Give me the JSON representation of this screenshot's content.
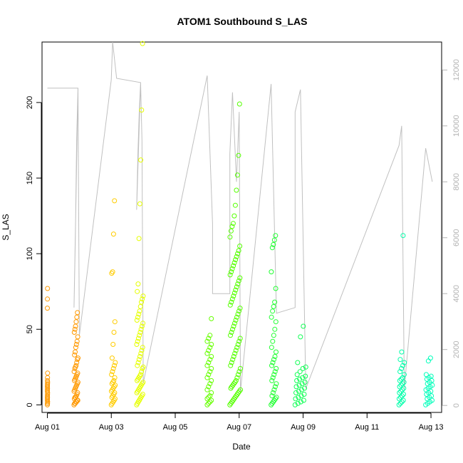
{
  "chart_data": {
    "type": "scatter",
    "title": "ATOM1 Southbound S_LAS",
    "xlabel": "Date",
    "ylabel": "S_LAS",
    "x_axis_type": "date",
    "xlim": [
      "2023-07-31T20:00",
      "2023-08-13T08:00"
    ],
    "ylim": [
      -5,
      240
    ],
    "y2lim": [
      -250,
      13000
    ],
    "x_ticks": [
      {
        "date": "2023-08-01T00:00",
        "label": "Aug 01"
      },
      {
        "date": "2023-08-03T00:00",
        "label": "Aug 03"
      },
      {
        "date": "2023-08-05T00:00",
        "label": "Aug 05"
      },
      {
        "date": "2023-08-07T00:00",
        "label": "Aug 07"
      },
      {
        "date": "2023-08-09T00:00",
        "label": "Aug 09"
      },
      {
        "date": "2023-08-11T00:00",
        "label": "Aug 11"
      },
      {
        "date": "2023-08-13T00:00",
        "label": "Aug 13"
      }
    ],
    "y_ticks": [
      0,
      50,
      100,
      150,
      200
    ],
    "y2_ticks": [
      0,
      2000,
      4000,
      6000,
      8000,
      10000,
      12000
    ],
    "grid": false,
    "marker": "open-circle",
    "clusters": [
      {
        "start": "2023-08-01T00:00",
        "end": "2023-08-01T00:10",
        "color": "#ff9900",
        "values": [
          0,
          1,
          1,
          2,
          3,
          4,
          5,
          5,
          6,
          7,
          8,
          9,
          10,
          11,
          12,
          13,
          14,
          15,
          16,
          18,
          21,
          64,
          70,
          77
        ]
      },
      {
        "start": "2023-08-01T20:00",
        "end": "2023-08-01T23:00",
        "color": "#ff9900",
        "values": [
          0,
          1,
          1,
          2,
          2,
          3,
          3,
          4,
          5,
          5,
          6,
          7,
          8,
          9,
          10,
          11,
          12,
          13,
          14,
          15,
          16,
          17,
          18,
          19,
          20,
          21,
          22,
          24,
          25,
          26,
          28,
          30,
          31,
          33,
          35,
          38,
          40,
          42,
          45,
          48,
          50,
          52,
          55,
          58,
          61
        ]
      },
      {
        "start": "2023-08-03T00:00",
        "end": "2023-08-03T03:00",
        "color": "#ffcc00",
        "values": [
          0,
          1,
          2,
          3,
          4,
          5,
          6,
          7,
          8,
          9,
          10,
          11,
          12,
          13,
          14,
          15,
          16,
          18,
          20,
          22,
          24,
          26,
          28,
          31,
          40,
          48,
          55,
          87,
          88,
          113,
          135
        ]
      },
      {
        "start": "2023-08-03T19:00",
        "end": "2023-08-04T00:00",
        "color": "#e6ff00",
        "values": [
          0,
          1,
          2,
          3,
          4,
          5,
          6,
          7,
          8,
          9,
          10,
          11,
          12,
          13,
          14,
          15,
          16,
          17,
          18,
          19,
          20,
          22,
          24,
          25,
          26,
          28,
          30,
          32,
          34,
          36,
          38,
          40,
          42,
          44,
          46,
          48,
          50,
          52,
          54,
          56,
          58,
          60,
          62,
          65,
          68,
          70,
          72,
          75,
          80,
          110,
          133,
          162,
          195,
          239
        ]
      },
      {
        "start": "2023-08-06T00:00",
        "end": "2023-08-06T04:00",
        "color": "#66ff00",
        "values": [
          0,
          1,
          2,
          3,
          4,
          5,
          6,
          8,
          10,
          12,
          14,
          16,
          18,
          20,
          22,
          24,
          26,
          28,
          30,
          32,
          34,
          36,
          38,
          40,
          42,
          44,
          46,
          57
        ]
      },
      {
        "start": "2023-08-06T17:00",
        "end": "2023-08-07T01:00",
        "color": "#55ff00",
        "values": [
          0,
          1,
          2,
          3,
          4,
          5,
          6,
          7,
          8,
          9,
          10,
          11,
          12,
          13,
          14,
          15,
          16,
          18,
          20,
          22,
          24,
          26,
          28,
          30,
          32,
          34,
          36,
          38,
          40,
          42,
          44,
          46,
          48,
          50,
          52,
          54,
          56,
          58,
          60,
          62,
          64,
          66,
          68,
          70,
          72,
          74,
          76,
          78,
          80,
          82,
          84,
          86,
          88,
          90,
          92,
          94,
          96,
          98,
          100,
          102,
          105,
          111,
          115,
          118,
          120,
          125,
          132,
          142,
          152,
          165,
          199
        ]
      },
      {
        "start": "2023-08-08T00:00",
        "end": "2023-08-08T04:00",
        "color": "#22ff33",
        "values": [
          0,
          1,
          2,
          3,
          4,
          5,
          6,
          8,
          10,
          12,
          14,
          16,
          18,
          20,
          22,
          24,
          26,
          28,
          30,
          32,
          35,
          38,
          42,
          46,
          50,
          55,
          58,
          62,
          65,
          68,
          77,
          88,
          104,
          106,
          109,
          112
        ]
      },
      {
        "start": "2023-08-08T18:00",
        "end": "2023-08-09T02:00",
        "color": "#11ff55",
        "values": [
          0,
          1,
          2,
          3,
          4,
          5,
          6,
          7,
          8,
          9,
          10,
          11,
          12,
          13,
          14,
          15,
          16,
          17,
          18,
          19,
          20,
          22,
          24,
          25,
          28,
          45,
          52
        ]
      },
      {
        "start": "2023-08-12T00:00",
        "end": "2023-08-12T04:00",
        "color": "#00ffaa",
        "values": [
          0,
          1,
          2,
          3,
          4,
          5,
          6,
          7,
          8,
          9,
          10,
          11,
          12,
          13,
          14,
          15,
          16,
          17,
          18,
          20,
          22,
          24,
          26,
          28,
          30,
          35,
          112
        ]
      },
      {
        "start": "2023-08-12T20:00",
        "end": "2023-08-13T01:00",
        "color": "#00ffbb",
        "values": [
          0,
          1,
          2,
          3,
          4,
          5,
          6,
          7,
          8,
          9,
          10,
          11,
          12,
          13,
          14,
          15,
          16,
          17,
          18,
          19,
          20,
          29,
          31
        ]
      }
    ],
    "secondary_series": {
      "axis": "right",
      "color": "#c0c0c0",
      "points": [
        [
          "2023-08-01T00:00",
          11350
        ],
        [
          "2023-08-01T23:00",
          11350
        ],
        [
          "2023-08-01T20:00",
          3500
        ],
        [
          "2023-08-01T21:00",
          6000
        ],
        [
          "2023-08-01T22:00",
          9500
        ],
        [
          "2023-08-01T23:00",
          11350
        ],
        [
          "2023-08-02T00:00",
          2500
        ],
        [
          "2023-08-03T00:00",
          11650
        ],
        [
          "2023-08-03T01:00",
          13000
        ],
        [
          "2023-08-03T04:00",
          11700
        ],
        [
          "2023-08-03T22:00",
          11550
        ],
        [
          "2023-08-03T19:00",
          7000
        ],
        [
          "2023-08-03T20:00",
          9000
        ],
        [
          "2023-08-03T21:00",
          10500
        ],
        [
          "2023-08-03T22:00",
          11550
        ],
        [
          "2023-08-03T23:00",
          9500
        ],
        [
          "2023-08-04T00:00",
          800
        ],
        [
          "2023-08-06T00:00",
          11800
        ],
        [
          "2023-08-06T04:00",
          6500
        ],
        [
          "2023-08-06T04:00",
          4000
        ],
        [
          "2023-08-06T17:00",
          4000
        ],
        [
          "2023-08-06T17:00",
          9000
        ],
        [
          "2023-08-06T19:00",
          11200
        ],
        [
          "2023-08-06T22:00",
          8000
        ],
        [
          "2023-08-07T00:00",
          10500
        ],
        [
          "2023-08-07T01:00",
          500
        ],
        [
          "2023-08-08T00:00",
          11500
        ],
        [
          "2023-08-08T04:00",
          3300
        ],
        [
          "2023-08-08T04:00",
          3300
        ],
        [
          "2023-08-08T18:00",
          3500
        ],
        [
          "2023-08-08T18:00",
          10500
        ],
        [
          "2023-08-08T22:00",
          11300
        ],
        [
          "2023-08-09T02:00",
          600
        ],
        [
          "2023-08-12T00:00",
          9300
        ],
        [
          "2023-08-12T02:00",
          10000
        ],
        [
          "2023-08-12T04:00",
          600
        ],
        [
          "2023-08-12T20:00",
          9200
        ],
        [
          "2023-08-13T01:00",
          8000
        ]
      ]
    }
  }
}
